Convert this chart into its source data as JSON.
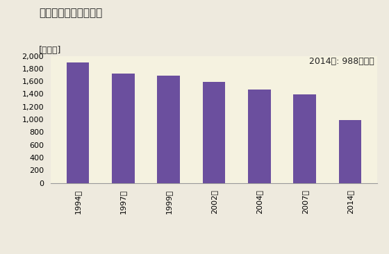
{
  "title": "商業の事業所数の推移",
  "ylabel_text": "[事業所]",
  "annotation": "2014年: 988事業所",
  "categories": [
    "1994年",
    "1997年",
    "1999年",
    "2002年",
    "2004年",
    "2007年",
    "2014年"
  ],
  "values": [
    1891,
    1718,
    1686,
    1591,
    1468,
    1398,
    988
  ],
  "bar_color": "#6B4F9E",
  "ylim": [
    0,
    2000
  ],
  "yticks": [
    0,
    200,
    400,
    600,
    800,
    1000,
    1200,
    1400,
    1600,
    1800,
    2000
  ],
  "background_color": "#F5F0DC",
  "plot_bg_color": "#F5F2E0",
  "fig_bg_color": "#EEEADE",
  "title_fontsize": 11,
  "label_fontsize": 9,
  "tick_fontsize": 8,
  "annotation_fontsize": 9
}
